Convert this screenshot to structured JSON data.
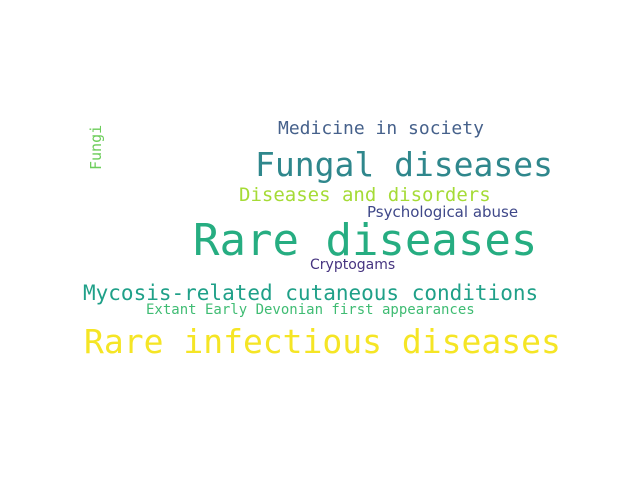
{
  "word_cloud": {
    "background": "#ffffff",
    "words": [
      {
        "id": "medicine",
        "text": "Medicine in society",
        "color": "#46618b"
      },
      {
        "id": "fungal_diseases",
        "text": "Fungal diseases",
        "color": "#2f878c"
      },
      {
        "id": "fungi",
        "text": "Fungi",
        "color": "#6ccd5a",
        "orientation": "vertical"
      },
      {
        "id": "diseases_disorders",
        "text": "Diseases and disorders",
        "color": "#a5db36"
      },
      {
        "id": "psych",
        "text": "Psychological abuse",
        "color": "#3f4889"
      },
      {
        "id": "rare_diseases",
        "text": "Rare diseases",
        "color": "#26ad81"
      },
      {
        "id": "cryptogams",
        "text": "Cryptogams",
        "color": "#463480"
      },
      {
        "id": "mycosis",
        "text": "Mycosis-related cutaneous conditions",
        "color": "#1fa088"
      },
      {
        "id": "extant",
        "text": "Extant Early Devonian first appearances",
        "color": "#3fbc73"
      },
      {
        "id": "rare_infectious",
        "text": "Rare infectious diseases",
        "color": "#f5e525"
      }
    ]
  }
}
